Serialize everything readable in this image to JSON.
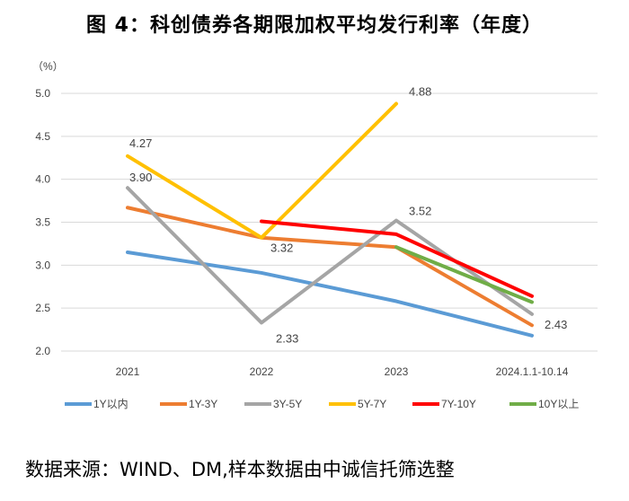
{
  "title": "图 4：科创债券各期限加权平均发行利率（年度）",
  "source": "数据来源：WIND、DM,样本数据由中诚信托筛选整",
  "chart_data": {
    "type": "line",
    "unit_label": "（%）",
    "categories": [
      "2021",
      "2022",
      "2023",
      "2024.1.1-10.14"
    ],
    "ylim": [
      2.0,
      5.0
    ],
    "yticks": [
      "2.0",
      "2.5",
      "3.0",
      "3.5",
      "4.0",
      "4.5",
      "5.0"
    ],
    "grid": true,
    "legend_position": "bottom",
    "series": [
      {
        "name": "1Y以内",
        "color": "#5b9bd5",
        "values": [
          3.15,
          2.91,
          2.58,
          2.18
        ]
      },
      {
        "name": "1Y-3Y",
        "color": "#ed7d31",
        "values": [
          3.67,
          3.32,
          3.21,
          2.3
        ]
      },
      {
        "name": "3Y-5Y",
        "color": "#a5a5a5",
        "values": [
          3.9,
          2.33,
          3.52,
          2.43
        ]
      },
      {
        "name": "5Y-7Y",
        "color": "#ffc000",
        "values": [
          4.27,
          3.32,
          4.88,
          null
        ]
      },
      {
        "name": "7Y-10Y",
        "color": "#ff0000",
        "values": [
          null,
          3.51,
          3.36,
          2.64
        ]
      },
      {
        "name": "10Y以上",
        "color": "#70ad47",
        "values": [
          null,
          null,
          3.21,
          2.57
        ]
      }
    ],
    "data_labels": [
      {
        "text": "4.27",
        "series": 3,
        "index": 0
      },
      {
        "text": "3.90",
        "series": 2,
        "index": 0
      },
      {
        "text": "3.32",
        "series": 1,
        "index": 1
      },
      {
        "text": "2.33",
        "series": 2,
        "index": 1
      },
      {
        "text": "3.52",
        "series": 2,
        "index": 2
      },
      {
        "text": "4.88",
        "series": 3,
        "index": 2
      },
      {
        "text": "2.43",
        "series": 2,
        "index": 3
      }
    ]
  }
}
